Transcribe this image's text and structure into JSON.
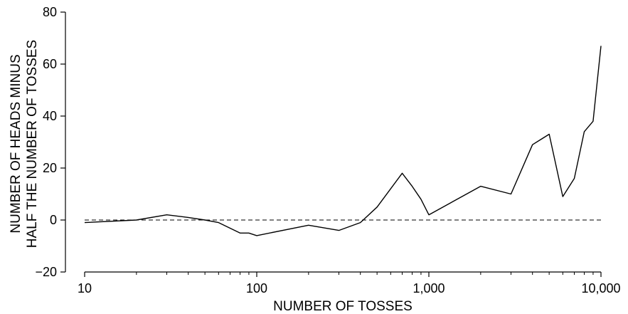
{
  "chart_data": {
    "type": "line",
    "title": "",
    "xlabel": "NUMBER OF TOSSES",
    "ylabel_lines": [
      "NUMBER OF HEADS MINUS",
      "HALF THE NUMBER OF TOSSES"
    ],
    "x_scale": "log",
    "xlim": [
      10,
      10000
    ],
    "ylim": [
      -20,
      80
    ],
    "x_ticks": [
      10,
      100,
      1000,
      10000
    ],
    "x_tick_labels": [
      "10",
      "100",
      "1,000",
      "10,000"
    ],
    "y_ticks": [
      -20,
      0,
      20,
      40,
      60,
      80
    ],
    "y_tick_labels": [
      "−20",
      "0",
      "20",
      "40",
      "60",
      "80"
    ],
    "grid": false,
    "reference_line": {
      "y": 0,
      "style": "dashed"
    },
    "series": [
      {
        "x": [
          10,
          20,
          30,
          40,
          50,
          60,
          80,
          90,
          100,
          200,
          300,
          400,
          500,
          700,
          800,
          900,
          1000,
          2000,
          3000,
          4000,
          5000,
          6000,
          7000,
          8000,
          9000,
          10000
        ],
        "y": [
          -1,
          0,
          2,
          1,
          0,
          -1,
          -5,
          -5,
          -6,
          -2,
          -4,
          -1,
          5,
          18,
          13,
          8,
          2,
          13,
          10,
          29,
          33,
          9,
          16,
          34,
          38,
          67
        ]
      }
    ]
  }
}
